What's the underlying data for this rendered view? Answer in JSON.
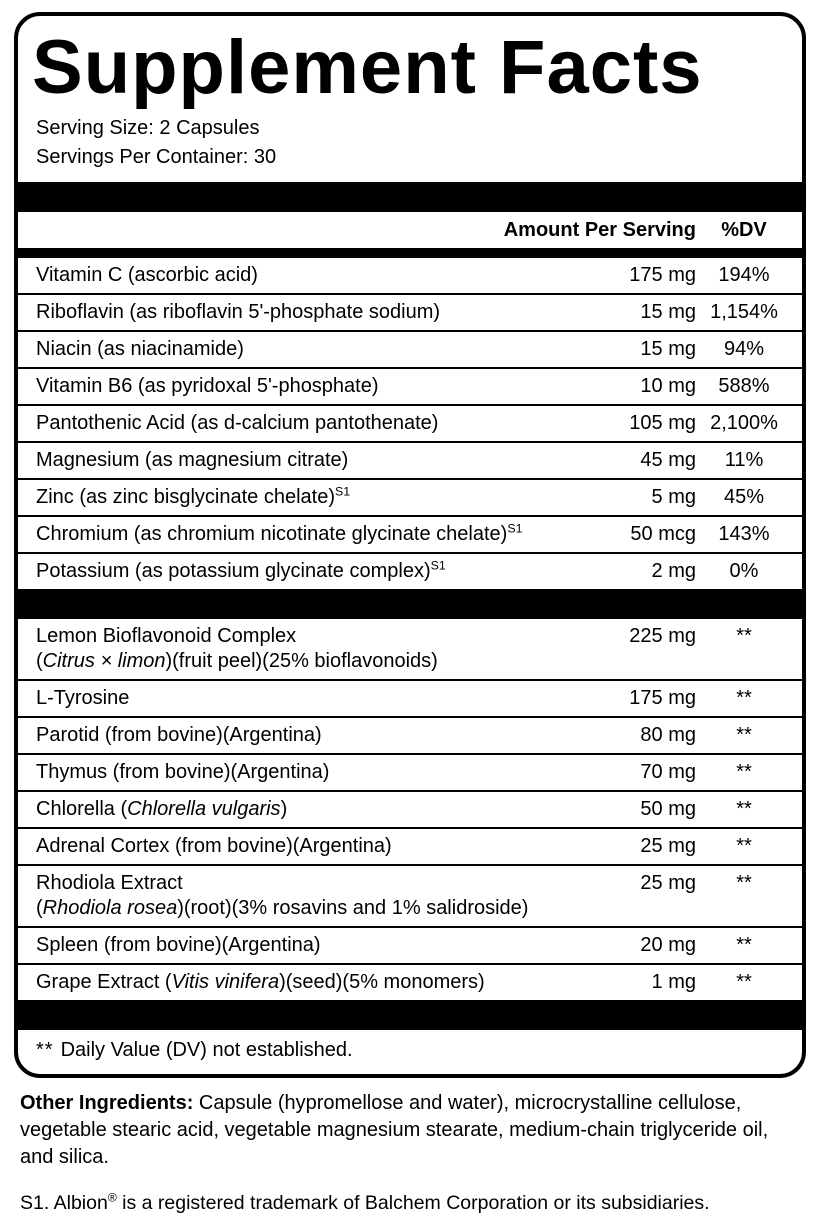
{
  "label": {
    "title": "Supplement Facts",
    "serving_size": "Serving Size: 2 Capsules",
    "servings_per_container": "Servings Per Container: 30",
    "columns": {
      "amount": "Amount Per Serving",
      "dv": "%DV"
    },
    "section1": [
      {
        "parts": [
          {
            "t": "Vitamin C (ascorbic acid)"
          }
        ],
        "amount": "175 mg",
        "dv": "194%"
      },
      {
        "parts": [
          {
            "t": "Riboflavin (as riboflavin 5'-phosphate sodium)"
          }
        ],
        "amount": "15 mg",
        "dv": "1,154%"
      },
      {
        "parts": [
          {
            "t": "Niacin (as niacinamide)"
          }
        ],
        "amount": "15 mg",
        "dv": "94%"
      },
      {
        "parts": [
          {
            "t": "Vitamin B6 (as pyridoxal 5'-phosphate)"
          }
        ],
        "amount": "10 mg",
        "dv": "588%"
      },
      {
        "parts": [
          {
            "t": "Pantothenic Acid (as d-calcium pantothenate)"
          }
        ],
        "amount": "105 mg",
        "dv": "2,100%"
      },
      {
        "parts": [
          {
            "t": "Magnesium (as magnesium citrate)"
          }
        ],
        "amount": "45 mg",
        "dv": "11%"
      },
      {
        "parts": [
          {
            "t": "Zinc (as zinc bisglycinate chelate)"
          },
          {
            "t": "S1",
            "sup": true
          }
        ],
        "amount": "5 mg",
        "dv": "45%"
      },
      {
        "parts": [
          {
            "t": "Chromium (as chromium nicotinate glycinate chelate)"
          },
          {
            "t": "S1",
            "sup": true
          }
        ],
        "amount": "50 mcg",
        "dv": "143%"
      },
      {
        "parts": [
          {
            "t": "Potassium (as potassium glycinate complex)"
          },
          {
            "t": "S1",
            "sup": true
          }
        ],
        "amount": "2 mg",
        "dv": "0%"
      }
    ],
    "section2": [
      {
        "parts": [
          {
            "t": "Lemon Bioflavonoid Complex"
          },
          {
            "br": true
          },
          {
            "t": "("
          },
          {
            "t": "Citrus × limon",
            "i": true
          },
          {
            "t": ")(fruit peel)(25% bioflavonoids)"
          }
        ],
        "amount": "225 mg",
        "dv": "**"
      },
      {
        "parts": [
          {
            "t": "L-Tyrosine"
          }
        ],
        "amount": "175 mg",
        "dv": "**"
      },
      {
        "parts": [
          {
            "t": "Parotid (from bovine)(Argentina)"
          }
        ],
        "amount": "80 mg",
        "dv": "**"
      },
      {
        "parts": [
          {
            "t": "Thymus (from bovine)(Argentina)"
          }
        ],
        "amount": "70 mg",
        "dv": "**"
      },
      {
        "parts": [
          {
            "t": "Chlorella ("
          },
          {
            "t": "Chlorella vulgaris",
            "i": true
          },
          {
            "t": ")"
          }
        ],
        "amount": "50 mg",
        "dv": "**"
      },
      {
        "parts": [
          {
            "t": "Adrenal Cortex (from bovine)(Argentina)"
          }
        ],
        "amount": "25 mg",
        "dv": "**"
      },
      {
        "parts": [
          {
            "t": "Rhodiola Extract"
          },
          {
            "br": true
          },
          {
            "t": "("
          },
          {
            "t": "Rhodiola rosea",
            "i": true
          },
          {
            "t": ")(root)(3% rosavins and 1% salidroside)"
          }
        ],
        "amount": "25 mg",
        "dv": "**"
      },
      {
        "parts": [
          {
            "t": "Spleen (from bovine)(Argentina)"
          }
        ],
        "amount": "20 mg",
        "dv": "**"
      },
      {
        "parts": [
          {
            "t": "Grape Extract ("
          },
          {
            "t": "Vitis vinifera",
            "i": true
          },
          {
            "t": ")(seed)(5% monomers)"
          }
        ],
        "amount": "1 mg",
        "dv": "**"
      }
    ],
    "footnote": {
      "marker": "**",
      "text": "Daily Value (DV) not established."
    }
  },
  "other_ingredients": {
    "label": "Other Ingredients:",
    "text": " Capsule (hypromellose and water), microcrystalline cellulose, vegetable stearic acid, vegetable magnesium stearate, medium-chain triglyceride oil, and silica."
  },
  "trademark": {
    "parts": [
      {
        "t": "S1. Albion"
      },
      {
        "t": "®",
        "sup": true
      },
      {
        "t": " is a registered trademark of Balchem Corporation or its subsidiaries."
      }
    ]
  }
}
